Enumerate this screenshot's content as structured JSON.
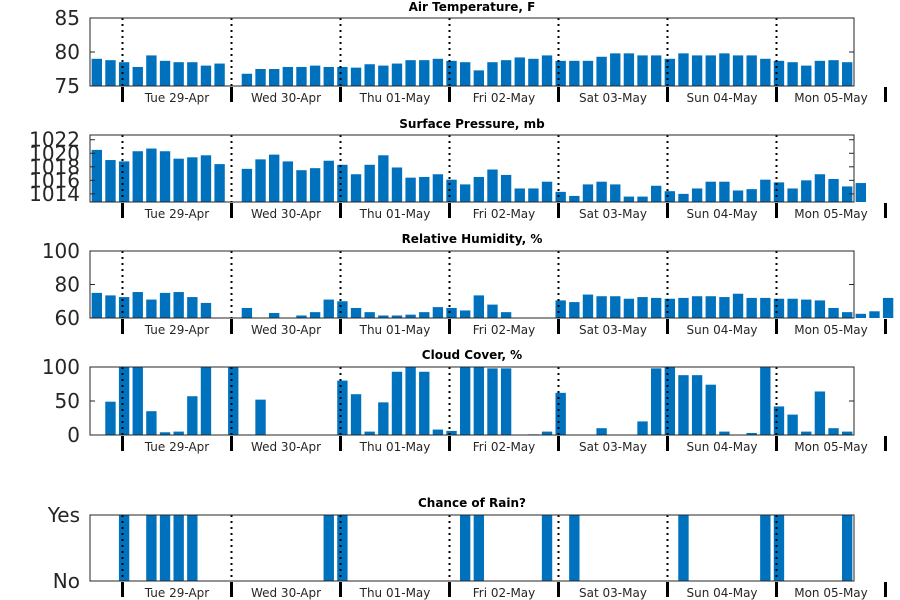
{
  "chart_data": [
    {
      "type": "bar",
      "title": "Air Temperature, F",
      "ylim": [
        75,
        85
      ],
      "yticks": [
        "75",
        "80",
        "85"
      ],
      "day_labels": [
        "Tue 29-Apr",
        "Wed 30-Apr",
        "Thu 01-May",
        "Fri 02-May",
        "Sat 03-May",
        "Sun 04-May",
        "Mon 05-May"
      ],
      "values": [
        79,
        78.8,
        78.5,
        77.8,
        79.5,
        78.7,
        78.5,
        78.5,
        78,
        78.3,
        null,
        76.8,
        77.5,
        77.5,
        77.8,
        77.8,
        78,
        77.8,
        77.8,
        77.7,
        78.2,
        78,
        78.3,
        78.8,
        78.8,
        79,
        78.7,
        78.5,
        77.3,
        78.5,
        78.8,
        79.2,
        79,
        79.5,
        78.7,
        78.7,
        78.7,
        79.3,
        79.8,
        79.8,
        79.5,
        79.5,
        79,
        79.8,
        79.5,
        79.5,
        79.8,
        79.5,
        79.5,
        79,
        78.7,
        78.5,
        78,
        78.7,
        78.8,
        78.5
      ]
    },
    {
      "type": "bar",
      "title": "Surface Pressure, mb",
      "ylim": [
        1012.8,
        1022.7
      ],
      "yticks": [
        "1014",
        "1016",
        "1018",
        "1020",
        "1022"
      ],
      "day_labels": [
        "Tue 29-Apr",
        "Wed 30-Apr",
        "Thu 01-May",
        "Fri 02-May",
        "Sat 03-May",
        "Sun 04-May",
        "Mon 05-May"
      ],
      "values": [
        1020.5,
        1019,
        1018.8,
        1020.3,
        1020.7,
        1020.3,
        1019.2,
        1019.4,
        1019.7,
        1018.4,
        null,
        1017.7,
        1019.1,
        1019.8,
        1018.8,
        1017.5,
        1017.8,
        1018.9,
        1018.3,
        1016.9,
        1018.3,
        1019.7,
        1017.9,
        1016.4,
        1016.5,
        1016.9,
        1016.1,
        1015.4,
        1016.5,
        1017.6,
        1016.8,
        1014.8,
        1014.8,
        1015.8,
        1014.3,
        1013.7,
        1015.4,
        1015.8,
        1015.4,
        1013.6,
        1013.6,
        1015.2,
        1014.4,
        1014,
        1014.8,
        1015.8,
        1015.8,
        1014.5,
        1014.7,
        1016.1,
        1015.7,
        1014.8,
        1016,
        1016.9,
        1016.2,
        1015.1,
        1015.6
      ]
    },
    {
      "type": "bar",
      "title": "Relative Humidity, %",
      "ylim": [
        60,
        100
      ],
      "yticks": [
        "60",
        "80",
        "100"
      ],
      "day_labels": [
        "Tue 29-Apr",
        "Wed 30-Apr",
        "Thu 01-May",
        "Fri 02-May",
        "Sat 03-May",
        "Sun 04-May",
        "Mon 05-May"
      ],
      "values": [
        75,
        73.5,
        72.5,
        75.5,
        71,
        75,
        75.5,
        72.5,
        69,
        null,
        null,
        66,
        null,
        63,
        null,
        61.5,
        63.5,
        71,
        70,
        66,
        63.5,
        61.5,
        61.5,
        62,
        63.5,
        66.5,
        66,
        64.5,
        73.5,
        68,
        63.5,
        null,
        null,
        null,
        70.5,
        69.5,
        74,
        73,
        73,
        71.5,
        72.5,
        72,
        71.5,
        72,
        73,
        73,
        72.5,
        74.5,
        72,
        72,
        71.5,
        71.5,
        71,
        70.5,
        66,
        63.5,
        62.5,
        64,
        72
      ]
    },
    {
      "type": "bar",
      "title": "Cloud Cover, %",
      "ylim": [
        0,
        100
      ],
      "yticks": [
        "0",
        "50",
        "100"
      ],
      "day_labels": [
        "Tue 29-Apr",
        "Wed 30-Apr",
        "Thu 01-May",
        "Fri 02-May",
        "Sat 03-May",
        "Sun 04-May",
        "Mon 05-May"
      ],
      "values": [
        null,
        49,
        100,
        100,
        35,
        4,
        5,
        57,
        100,
        null,
        100,
        null,
        52,
        null,
        null,
        null,
        null,
        null,
        80,
        60,
        5,
        48,
        93,
        100,
        93,
        8,
        6,
        100,
        100,
        98,
        98,
        null,
        1,
        5,
        62,
        null,
        null,
        10,
        null,
        null,
        20,
        98,
        100,
        88,
        88,
        74,
        5,
        null,
        3,
        100,
        42,
        30,
        5,
        64,
        10,
        5
      ]
    },
    {
      "type": "bar",
      "title": "Chance of Rain?",
      "ylim": [
        0,
        1
      ],
      "yticks": [
        "No",
        "Yes"
      ],
      "day_labels": [
        "Tue 29-Apr",
        "Wed 30-Apr",
        "Thu 01-May",
        "Fri 02-May",
        "Sat 03-May",
        "Sun 04-May",
        "Mon 05-May"
      ],
      "values": [
        0,
        0,
        1,
        0,
        1,
        1,
        1,
        1,
        0,
        0,
        0,
        0,
        0,
        0,
        0,
        0,
        0,
        1,
        1,
        0,
        0,
        0,
        0,
        0,
        0,
        0,
        0,
        1,
        1,
        0,
        0,
        0,
        0,
        1,
        0,
        1,
        0,
        0,
        0,
        0,
        0,
        0,
        0,
        1,
        0,
        0,
        0,
        0,
        0,
        1,
        1,
        0,
        0,
        0,
        0,
        1
      ]
    }
  ]
}
